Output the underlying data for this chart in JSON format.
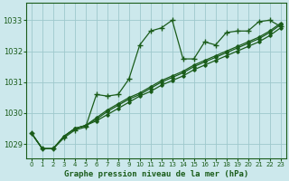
{
  "xlabel": "Graphe pression niveau de la mer (hPa)",
  "bg_color": "#cce8ec",
  "grid_color": "#9ec8cc",
  "line_color": "#1a5c1a",
  "xlim": [
    -0.5,
    23.5
  ],
  "ylim": [
    1028.55,
    1033.55
  ],
  "yticks": [
    1029,
    1030,
    1031,
    1032,
    1033
  ],
  "xtick_labels": [
    "0",
    "1",
    "2",
    "3",
    "4",
    "5",
    "6",
    "7",
    "8",
    "9",
    "10",
    "11",
    "12",
    "13",
    "14",
    "15",
    "16",
    "17",
    "18",
    "19",
    "20",
    "21",
    "22",
    "23"
  ],
  "series": [
    [
      1029.35,
      1028.85,
      1028.85,
      1029.2,
      1029.45,
      1029.55,
      1030.6,
      1030.55,
      1030.6,
      1031.1,
      1032.2,
      1032.65,
      1032.75,
      1033.0,
      1031.75,
      1031.75,
      1032.3,
      1032.2,
      1032.6,
      1032.65,
      1032.65,
      1032.95,
      1033.0,
      1032.8
    ],
    [
      1029.35,
      1028.85,
      1028.85,
      1029.25,
      1029.5,
      1029.6,
      1029.75,
      1029.95,
      1030.15,
      1030.35,
      1030.55,
      1030.7,
      1030.9,
      1031.05,
      1031.2,
      1031.4,
      1031.55,
      1031.7,
      1031.85,
      1032.0,
      1032.15,
      1032.3,
      1032.5,
      1032.75
    ],
    [
      1029.35,
      1028.85,
      1028.85,
      1029.25,
      1029.5,
      1029.6,
      1029.8,
      1030.05,
      1030.25,
      1030.45,
      1030.6,
      1030.8,
      1031.0,
      1031.15,
      1031.3,
      1031.5,
      1031.65,
      1031.8,
      1031.95,
      1032.1,
      1032.25,
      1032.4,
      1032.6,
      1032.85
    ],
    [
      1029.35,
      1028.85,
      1028.85,
      1029.25,
      1029.5,
      1029.6,
      1029.85,
      1030.1,
      1030.3,
      1030.5,
      1030.65,
      1030.85,
      1031.05,
      1031.2,
      1031.35,
      1031.55,
      1031.7,
      1031.85,
      1032.0,
      1032.15,
      1032.3,
      1032.45,
      1032.65,
      1032.9
    ]
  ]
}
